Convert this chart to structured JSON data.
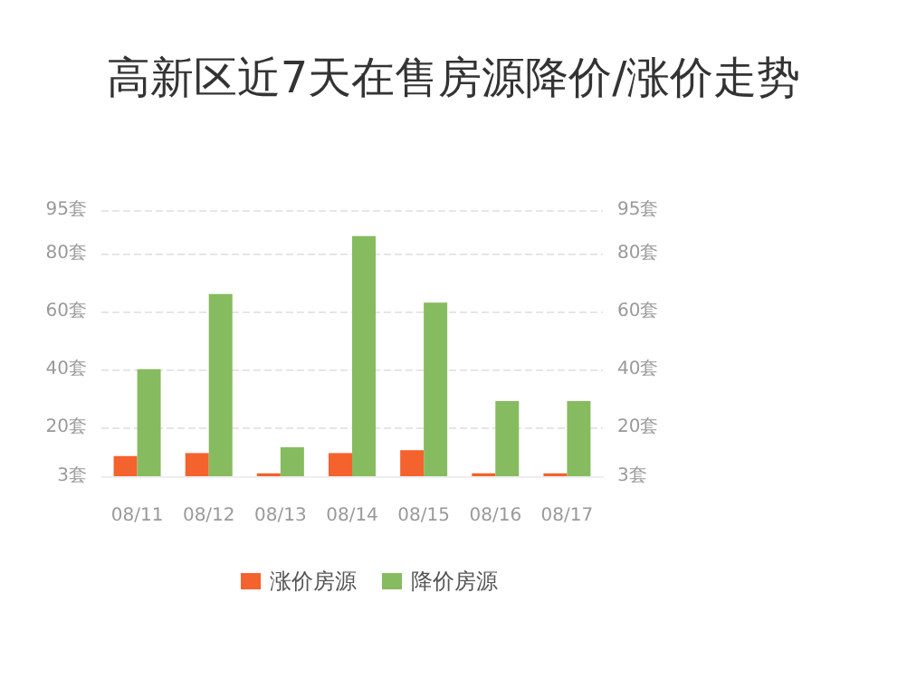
{
  "chart_data": {
    "type": "bar",
    "title": "高新区近7天在售房源降价/涨价走势",
    "categories": [
      "08/11",
      "08/12",
      "08/13",
      "08/14",
      "08/15",
      "08/16",
      "08/17"
    ],
    "series": [
      {
        "name": "涨价房源",
        "color": "#f4622d",
        "values": [
          10,
          11,
          4,
          11,
          12,
          4,
          4
        ]
      },
      {
        "name": "降价房源",
        "color": "#87bb5f",
        "values": [
          40,
          66,
          13,
          86,
          63,
          29,
          29
        ]
      }
    ],
    "ylim": [
      3,
      95
    ],
    "yticks": [
      {
        "value": 3,
        "label": "3套"
      },
      {
        "value": 20,
        "label": "20套"
      },
      {
        "value": 40,
        "label": "40套"
      },
      {
        "value": 60,
        "label": "60套"
      },
      {
        "value": 80,
        "label": "80套"
      },
      {
        "value": 95,
        "label": "95套"
      }
    ],
    "y2lim": [
      3,
      95
    ],
    "y2ticks": [
      {
        "value": 3,
        "label": "3套"
      },
      {
        "value": 20,
        "label": "20套"
      },
      {
        "value": 40,
        "label": "40套"
      },
      {
        "value": 60,
        "label": "60套"
      },
      {
        "value": 80,
        "label": "80套"
      },
      {
        "value": 95,
        "label": "95套"
      }
    ],
    "grid": "y",
    "legend": "bottom"
  }
}
